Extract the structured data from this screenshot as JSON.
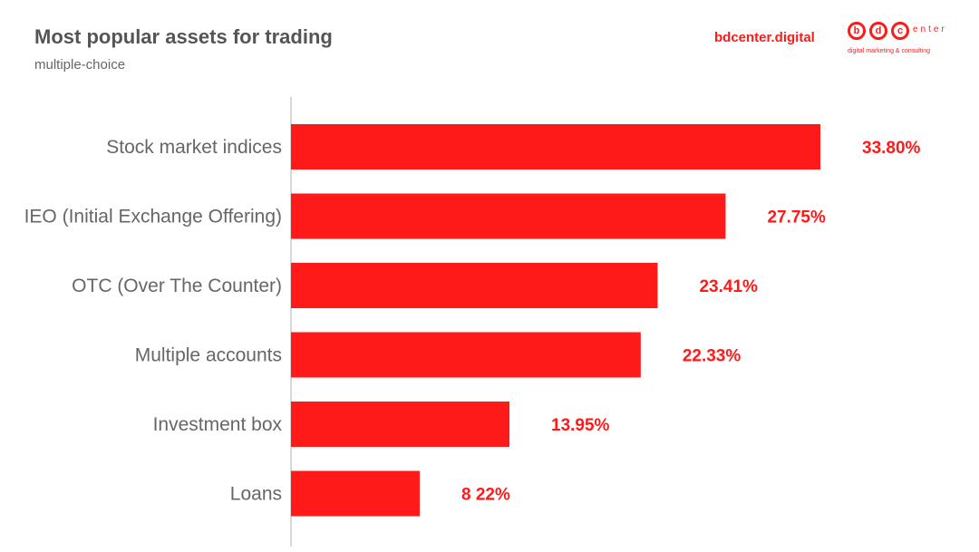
{
  "header": {
    "title": "Most popular assets for trading",
    "subtitle": "multiple-choice",
    "site": "bdcenter.digital"
  },
  "logo": {
    "letters": [
      "b",
      "d",
      "c"
    ],
    "word": "enter",
    "tagline": "digital marketing & consulting"
  },
  "colors": {
    "bar": "#ff1a1a",
    "label": "#666666",
    "value": "#ff1a1a",
    "axis": "#cccccc"
  },
  "chart_data": {
    "type": "bar",
    "orientation": "horizontal",
    "title": "Most popular assets for trading",
    "subtitle": "multiple-choice",
    "categories": [
      "Stock market indices",
      "IEO (Initial Exchange Offering)",
      "OTC (Over The Counter)",
      "Multiple accounts",
      "Investment box",
      "Loans"
    ],
    "values": [
      33.8,
      27.75,
      23.41,
      22.33,
      13.95,
      8.22
    ],
    "value_labels": [
      "33.80%",
      "27.75%",
      "23.41%",
      "22.33%",
      "13.95%",
      "8 22%"
    ],
    "xlim": [
      0,
      35
    ],
    "grid": false,
    "legend": "none"
  }
}
